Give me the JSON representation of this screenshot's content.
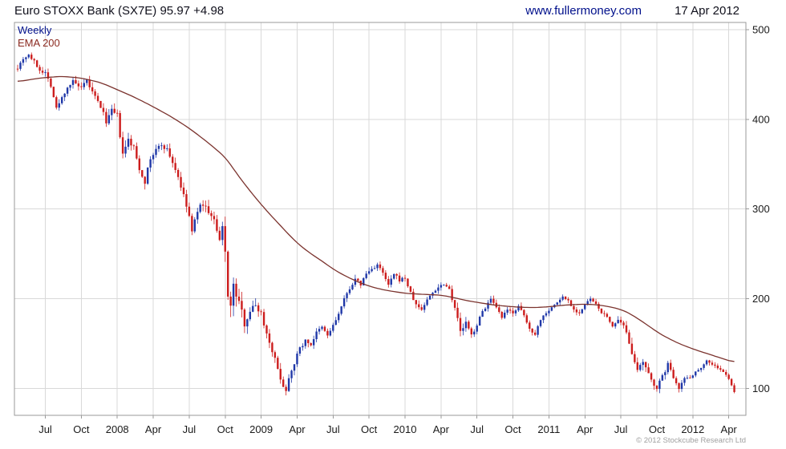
{
  "header": {
    "title": "Euro STOXX Bank (SX7E) 95.97 +4.98",
    "website": "www.fullermoney.com",
    "date": "17 Apr 2012"
  },
  "labels": {
    "timeframe": "Weekly",
    "ema": "EMA 200",
    "copyright": "© 2012 Stockcube Research Ltd"
  },
  "colors": {
    "up": "#2038a8",
    "down": "#cc1d1d",
    "ema": "#7b332e",
    "grid": "#d9d9d9",
    "border": "#9a9a9a",
    "axis_text": "#1a1a1a",
    "copyright": "#a0a0a0"
  },
  "chart_data": {
    "type": "candlestick",
    "instrument": "Euro STOXX Bank (SX7E)",
    "timeframe": "Weekly",
    "last_price": 95.97,
    "change": 4.98,
    "date": "17 Apr 2012",
    "overlay": "EMA 200",
    "y_ticks": [
      100,
      200,
      300,
      400,
      500
    ],
    "y_range": [
      70,
      508
    ],
    "weeks_total": 260,
    "x_ticks": [
      {
        "week": 10,
        "label": "Jul"
      },
      {
        "week": 23,
        "label": "Oct"
      },
      {
        "week": 36,
        "label": "2008"
      },
      {
        "week": 49,
        "label": "Apr"
      },
      {
        "week": 62,
        "label": "Jul"
      },
      {
        "week": 75,
        "label": "Oct"
      },
      {
        "week": 88,
        "label": "2009"
      },
      {
        "week": 101,
        "label": "Apr"
      },
      {
        "week": 114,
        "label": "Jul"
      },
      {
        "week": 127,
        "label": "Oct"
      },
      {
        "week": 140,
        "label": "2010"
      },
      {
        "week": 153,
        "label": "Apr"
      },
      {
        "week": 166,
        "label": "Jul"
      },
      {
        "week": 179,
        "label": "Oct"
      },
      {
        "week": 192,
        "label": "2011"
      },
      {
        "week": 205,
        "label": "Apr"
      },
      {
        "week": 218,
        "label": "Jul"
      },
      {
        "week": 231,
        "label": "Oct"
      },
      {
        "week": 244,
        "label": "2012"
      },
      {
        "week": 257,
        "label": "Apr"
      }
    ],
    "close_anchors": [
      [
        0,
        458
      ],
      [
        2,
        468
      ],
      [
        4,
        472
      ],
      [
        6,
        464
      ],
      [
        8,
        455
      ],
      [
        10,
        452
      ],
      [
        12,
        438
      ],
      [
        14,
        412
      ],
      [
        16,
        424
      ],
      [
        18,
        436
      ],
      [
        20,
        442
      ],
      [
        23,
        434
      ],
      [
        25,
        443
      ],
      [
        27,
        430
      ],
      [
        30,
        414
      ],
      [
        32,
        398
      ],
      [
        34,
        409
      ],
      [
        36,
        404
      ],
      [
        38,
        360
      ],
      [
        40,
        377
      ],
      [
        42,
        368
      ],
      [
        44,
        345
      ],
      [
        46,
        331
      ],
      [
        48,
        356
      ],
      [
        50,
        366
      ],
      [
        52,
        372
      ],
      [
        54,
        366
      ],
      [
        56,
        352
      ],
      [
        58,
        336
      ],
      [
        60,
        314
      ],
      [
        62,
        292
      ],
      [
        63,
        274
      ],
      [
        65,
        299
      ],
      [
        67,
        306
      ],
      [
        69,
        297
      ],
      [
        71,
        287
      ],
      [
        73,
        263
      ],
      [
        74,
        279
      ],
      [
        75,
        252
      ],
      [
        76,
        206
      ],
      [
        77,
        192
      ],
      [
        78,
        213
      ],
      [
        80,
        196
      ],
      [
        82,
        173
      ],
      [
        84,
        187
      ],
      [
        86,
        193
      ],
      [
        88,
        184
      ],
      [
        90,
        161
      ],
      [
        92,
        143
      ],
      [
        94,
        121
      ],
      [
        96,
        103
      ],
      [
        97,
        97
      ],
      [
        98,
        113
      ],
      [
        100,
        129
      ],
      [
        102,
        145
      ],
      [
        104,
        153
      ],
      [
        106,
        149
      ],
      [
        108,
        162
      ],
      [
        110,
        168
      ],
      [
        112,
        159
      ],
      [
        114,
        170
      ],
      [
        116,
        183
      ],
      [
        118,
        199
      ],
      [
        120,
        212
      ],
      [
        122,
        221
      ],
      [
        124,
        216
      ],
      [
        126,
        228
      ],
      [
        128,
        233
      ],
      [
        130,
        238
      ],
      [
        132,
        228
      ],
      [
        134,
        215
      ],
      [
        136,
        227
      ],
      [
        138,
        221
      ],
      [
        140,
        223
      ],
      [
        142,
        206
      ],
      [
        144,
        193
      ],
      [
        146,
        188
      ],
      [
        148,
        199
      ],
      [
        150,
        207
      ],
      [
        152,
        213
      ],
      [
        154,
        217
      ],
      [
        156,
        211
      ],
      [
        158,
        191
      ],
      [
        160,
        163
      ],
      [
        162,
        173
      ],
      [
        164,
        159
      ],
      [
        166,
        171
      ],
      [
        168,
        186
      ],
      [
        170,
        195
      ],
      [
        171,
        199
      ],
      [
        173,
        189
      ],
      [
        175,
        179
      ],
      [
        177,
        187
      ],
      [
        179,
        185
      ],
      [
        181,
        191
      ],
      [
        183,
        181
      ],
      [
        185,
        166
      ],
      [
        187,
        161
      ],
      [
        189,
        177
      ],
      [
        191,
        185
      ],
      [
        193,
        190
      ],
      [
        195,
        196
      ],
      [
        197,
        202
      ],
      [
        199,
        198
      ],
      [
        201,
        188
      ],
      [
        203,
        184
      ],
      [
        205,
        193
      ],
      [
        207,
        200
      ],
      [
        209,
        193
      ],
      [
        211,
        185
      ],
      [
        213,
        179
      ],
      [
        215,
        170
      ],
      [
        217,
        175
      ],
      [
        219,
        169
      ],
      [
        221,
        152
      ],
      [
        223,
        131
      ],
      [
        224,
        118
      ],
      [
        226,
        129
      ],
      [
        228,
        115
      ],
      [
        230,
        105
      ],
      [
        231,
        101
      ],
      [
        233,
        113
      ],
      [
        235,
        127
      ],
      [
        237,
        113
      ],
      [
        239,
        101
      ],
      [
        241,
        111
      ],
      [
        243,
        113
      ],
      [
        245,
        118
      ],
      [
        247,
        124
      ],
      [
        249,
        131
      ],
      [
        251,
        127
      ],
      [
        253,
        123
      ],
      [
        255,
        118
      ],
      [
        257,
        111
      ],
      [
        258,
        104
      ],
      [
        259,
        96
      ]
    ],
    "volatility_anchors": [
      [
        0,
        9
      ],
      [
        10,
        9
      ],
      [
        20,
        10
      ],
      [
        30,
        12
      ],
      [
        36,
        15
      ],
      [
        40,
        14
      ],
      [
        44,
        16
      ],
      [
        50,
        12
      ],
      [
        56,
        12
      ],
      [
        62,
        14
      ],
      [
        66,
        13
      ],
      [
        72,
        16
      ],
      [
        75,
        24
      ],
      [
        77,
        28
      ],
      [
        80,
        22
      ],
      [
        84,
        17
      ],
      [
        88,
        15
      ],
      [
        92,
        14
      ],
      [
        96,
        13
      ],
      [
        100,
        11
      ],
      [
        106,
        10
      ],
      [
        112,
        9
      ],
      [
        118,
        9
      ],
      [
        124,
        9
      ],
      [
        130,
        9
      ],
      [
        136,
        9
      ],
      [
        142,
        10
      ],
      [
        148,
        8
      ],
      [
        154,
        8
      ],
      [
        158,
        14
      ],
      [
        161,
        12
      ],
      [
        166,
        9
      ],
      [
        172,
        8
      ],
      [
        178,
        8
      ],
      [
        184,
        8
      ],
      [
        190,
        7
      ],
      [
        196,
        7
      ],
      [
        202,
        7
      ],
      [
        208,
        7
      ],
      [
        214,
        7
      ],
      [
        219,
        9
      ],
      [
        222,
        17
      ],
      [
        225,
        14
      ],
      [
        228,
        11
      ],
      [
        231,
        11
      ],
      [
        235,
        10
      ],
      [
        239,
        8
      ],
      [
        244,
        7
      ],
      [
        249,
        7
      ],
      [
        254,
        6
      ],
      [
        259,
        5
      ]
    ],
    "ema_anchors": [
      [
        0,
        442
      ],
      [
        8,
        446
      ],
      [
        16,
        448
      ],
      [
        23,
        446
      ],
      [
        30,
        441
      ],
      [
        36,
        433
      ],
      [
        42,
        425
      ],
      [
        49,
        414
      ],
      [
        56,
        402
      ],
      [
        62,
        390
      ],
      [
        68,
        376
      ],
      [
        75,
        358
      ],
      [
        80,
        336
      ],
      [
        85,
        316
      ],
      [
        90,
        298
      ],
      [
        96,
        278
      ],
      [
        101,
        262
      ],
      [
        106,
        250
      ],
      [
        110,
        242
      ],
      [
        114,
        233
      ],
      [
        118,
        226
      ],
      [
        122,
        220
      ],
      [
        127,
        214
      ],
      [
        132,
        210
      ],
      [
        136,
        208
      ],
      [
        140,
        206
      ],
      [
        146,
        205
      ],
      [
        153,
        204
      ],
      [
        158,
        201
      ],
      [
        162,
        198
      ],
      [
        166,
        196
      ],
      [
        172,
        193
      ],
      [
        179,
        191
      ],
      [
        186,
        190
      ],
      [
        192,
        191
      ],
      [
        198,
        193
      ],
      [
        205,
        194
      ],
      [
        210,
        193
      ],
      [
        214,
        191
      ],
      [
        218,
        188
      ],
      [
        221,
        184
      ],
      [
        224,
        178
      ],
      [
        227,
        172
      ],
      [
        231,
        163
      ],
      [
        235,
        156
      ],
      [
        239,
        150
      ],
      [
        244,
        144
      ],
      [
        248,
        140
      ],
      [
        252,
        136
      ],
      [
        255,
        133
      ],
      [
        259,
        129
      ]
    ]
  }
}
